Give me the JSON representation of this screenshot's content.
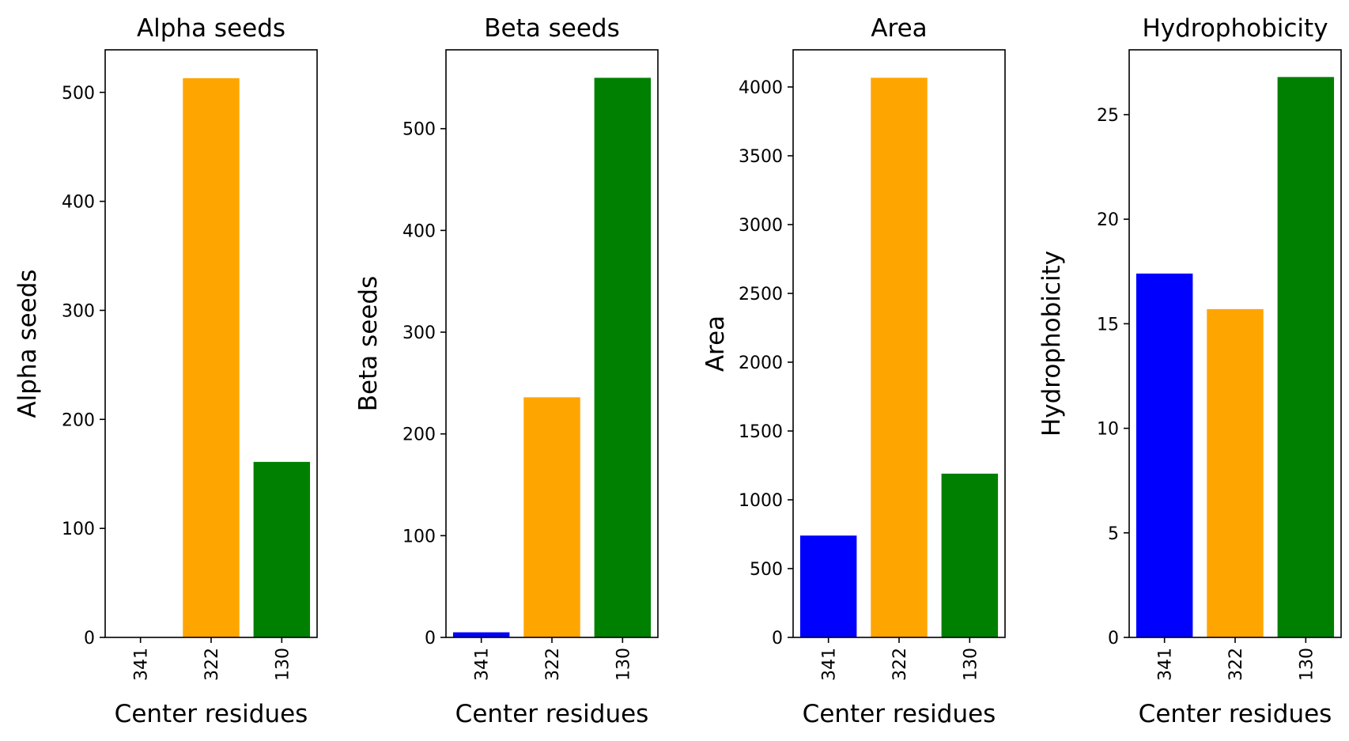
{
  "chart_data": [
    {
      "type": "bar",
      "title": "Alpha seeds",
      "xlabel": "Center residues",
      "ylabel": "Alpha seeds",
      "categories": [
        "341",
        "322",
        "130"
      ],
      "values": [
        0,
        513,
        161
      ],
      "colors": [
        "#0000ff",
        "#ffa500",
        "#008000"
      ],
      "ylim": [
        0,
        539
      ],
      "yticks": [
        0,
        100,
        200,
        300,
        400,
        500
      ],
      "grid": false
    },
    {
      "type": "bar",
      "title": "Beta seeds",
      "xlabel": "Center residues",
      "ylabel": "Beta seeds",
      "categories": [
        "341",
        "322",
        "130"
      ],
      "values": [
        5,
        236,
        550
      ],
      "colors": [
        "#0000ff",
        "#ffa500",
        "#008000"
      ],
      "ylim": [
        0,
        577.5
      ],
      "yticks": [
        0,
        100,
        200,
        300,
        400,
        500
      ],
      "grid": false
    },
    {
      "type": "bar",
      "title": "Area",
      "xlabel": "Center residues",
      "ylabel": "Area",
      "categories": [
        "341",
        "322",
        "130"
      ],
      "values": [
        740,
        4067,
        1190
      ],
      "colors": [
        "#0000ff",
        "#ffa500",
        "#008000"
      ],
      "ylim": [
        0,
        4270
      ],
      "yticks": [
        0,
        500,
        1000,
        1500,
        2000,
        2500,
        3000,
        3500,
        4000
      ],
      "grid": false
    },
    {
      "type": "bar",
      "title": "Hydrophobicity",
      "xlabel": "Center residues",
      "ylabel": "Hydrophobicity",
      "categories": [
        "341",
        "322",
        "130"
      ],
      "values": [
        17.4,
        15.7,
        26.8
      ],
      "colors": [
        "#0000ff",
        "#ffa500",
        "#008000"
      ],
      "ylim": [
        0,
        28.1
      ],
      "yticks": [
        0,
        5,
        10,
        15,
        20,
        25
      ],
      "grid": false
    }
  ]
}
